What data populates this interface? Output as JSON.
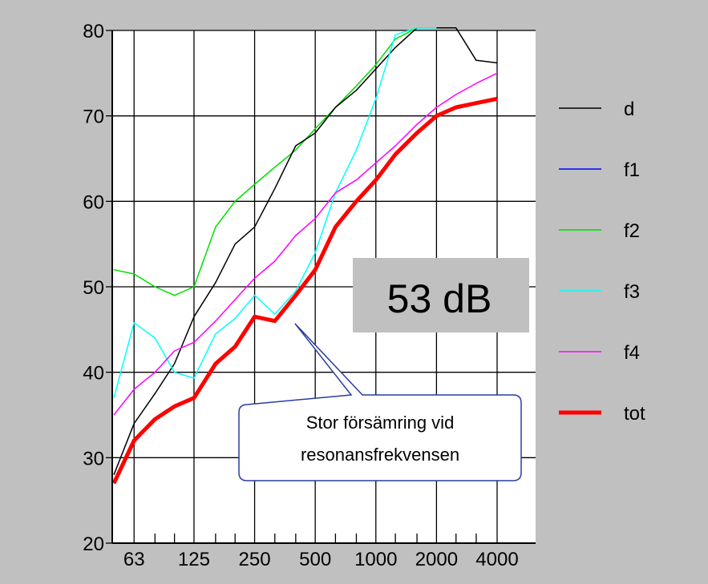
{
  "chart_data": {
    "type": "line",
    "categories": [
      "63",
      "125",
      "250",
      "500",
      "1000",
      "2000",
      "4000"
    ],
    "x_ticks": [
      50,
      63,
      80,
      100,
      125,
      160,
      200,
      250,
      315,
      400,
      500,
      630,
      800,
      1000,
      1250,
      1600,
      2000,
      2500,
      3150,
      4000
    ],
    "x_scale": "log",
    "ylim": [
      20,
      80
    ],
    "y_ticks": [
      20,
      30,
      40,
      50,
      60,
      70,
      80
    ],
    "grid": true,
    "legend_position": "right",
    "series": [
      {
        "name": "d",
        "color": "#000000",
        "x": [
          50,
          63,
          80,
          100,
          125,
          160,
          200,
          250,
          315,
          400,
          500,
          630,
          800,
          1000,
          1250,
          1600,
          2000,
          2500,
          3150,
          4000
        ],
        "values": [
          28,
          34,
          37.5,
          41,
          46.5,
          50.5,
          55,
          57,
          61.5,
          66.5,
          68,
          71,
          73,
          75.5,
          78,
          80.8,
          81,
          80.8,
          76.5,
          76.2
        ]
      },
      {
        "name": "f1",
        "color": "#0000ff",
        "x": [],
        "values": []
      },
      {
        "name": "f2",
        "color": "#00dd00",
        "x": [
          50,
          63,
          80,
          100,
          125,
          160,
          200,
          250,
          315,
          400,
          500,
          630,
          800,
          1000,
          1250,
          1600
        ],
        "values": [
          52,
          51.5,
          50,
          49,
          50,
          57,
          60,
          62,
          64,
          66,
          68.5,
          71,
          73.5,
          76,
          79,
          82
        ]
      },
      {
        "name": "f3",
        "color": "#00ffff",
        "x": [
          50,
          63,
          80,
          100,
          125,
          160,
          200,
          250,
          315,
          400,
          500,
          630,
          800,
          1000,
          1250,
          1600,
          2000
        ],
        "values": [
          37,
          45.8,
          44,
          40,
          39.3,
          44.5,
          46.3,
          49,
          46.8,
          49.5,
          54,
          61,
          66,
          72,
          79.5,
          81.5,
          82
        ]
      },
      {
        "name": "f4",
        "color": "#ff00ff",
        "x": [
          50,
          63,
          80,
          100,
          125,
          160,
          200,
          250,
          315,
          400,
          500,
          630,
          800,
          1000,
          1250,
          1600,
          2000,
          2500,
          3150,
          4000
        ],
        "values": [
          35,
          38,
          40,
          42.5,
          43.5,
          46,
          48.5,
          51,
          53,
          56,
          58,
          61,
          62.5,
          64.5,
          66.5,
          69,
          71,
          72.5,
          73.8,
          75
        ]
      },
      {
        "name": "tot",
        "color": "#ff0000",
        "x": [
          50,
          63,
          80,
          100,
          125,
          160,
          200,
          250,
          315,
          400,
          500,
          630,
          800,
          1000,
          1250,
          1600,
          2000,
          2500,
          3150,
          4000
        ],
        "values": [
          27,
          32,
          34.5,
          36,
          37,
          41,
          43,
          46.5,
          46,
          49,
          52,
          57,
          60,
          62.5,
          65.5,
          68,
          70,
          71,
          71.5,
          72
        ]
      }
    ],
    "annotations": {
      "big_text": "53 dB",
      "callout_lines": [
        "Stor försämring vid",
        "resonansfrekvensen"
      ]
    }
  }
}
